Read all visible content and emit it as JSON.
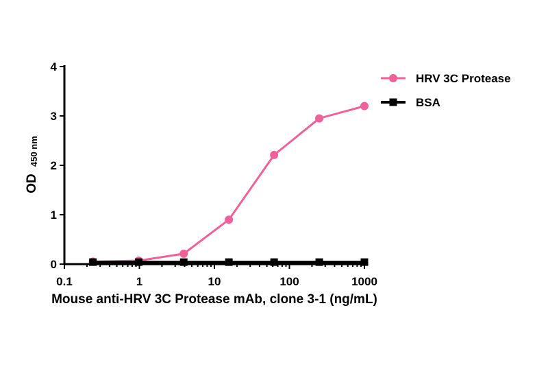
{
  "chart_data": {
    "type": "line",
    "title": "",
    "xlabel": "Mouse anti-HRV 3C Protease mAb, clone 3-1 (ng/mL)",
    "ylabel": "OD",
    "ylabel_sub": "450 nm",
    "x_scale": "log",
    "xlim": [
      0.1,
      1000
    ],
    "ylim": [
      0,
      4
    ],
    "x_ticks": [
      "0.1",
      "1",
      "10",
      "100",
      "1000"
    ],
    "y_ticks": [
      "0",
      "1",
      "2",
      "3",
      "4"
    ],
    "grid": false,
    "legend_position": "top-right",
    "x": [
      0.24,
      0.98,
      3.9,
      15.6,
      62.5,
      250,
      1000
    ],
    "series": [
      {
        "name": "HRV 3C Protease",
        "color": "#f0609a",
        "marker": "circle",
        "values": [
          0.05,
          0.07,
          0.21,
          0.9,
          2.21,
          2.95,
          3.2
        ]
      },
      {
        "name": "BSA",
        "color": "#000000",
        "marker": "square",
        "values": [
          0.04,
          0.04,
          0.04,
          0.04,
          0.04,
          0.04,
          0.04
        ]
      }
    ]
  }
}
